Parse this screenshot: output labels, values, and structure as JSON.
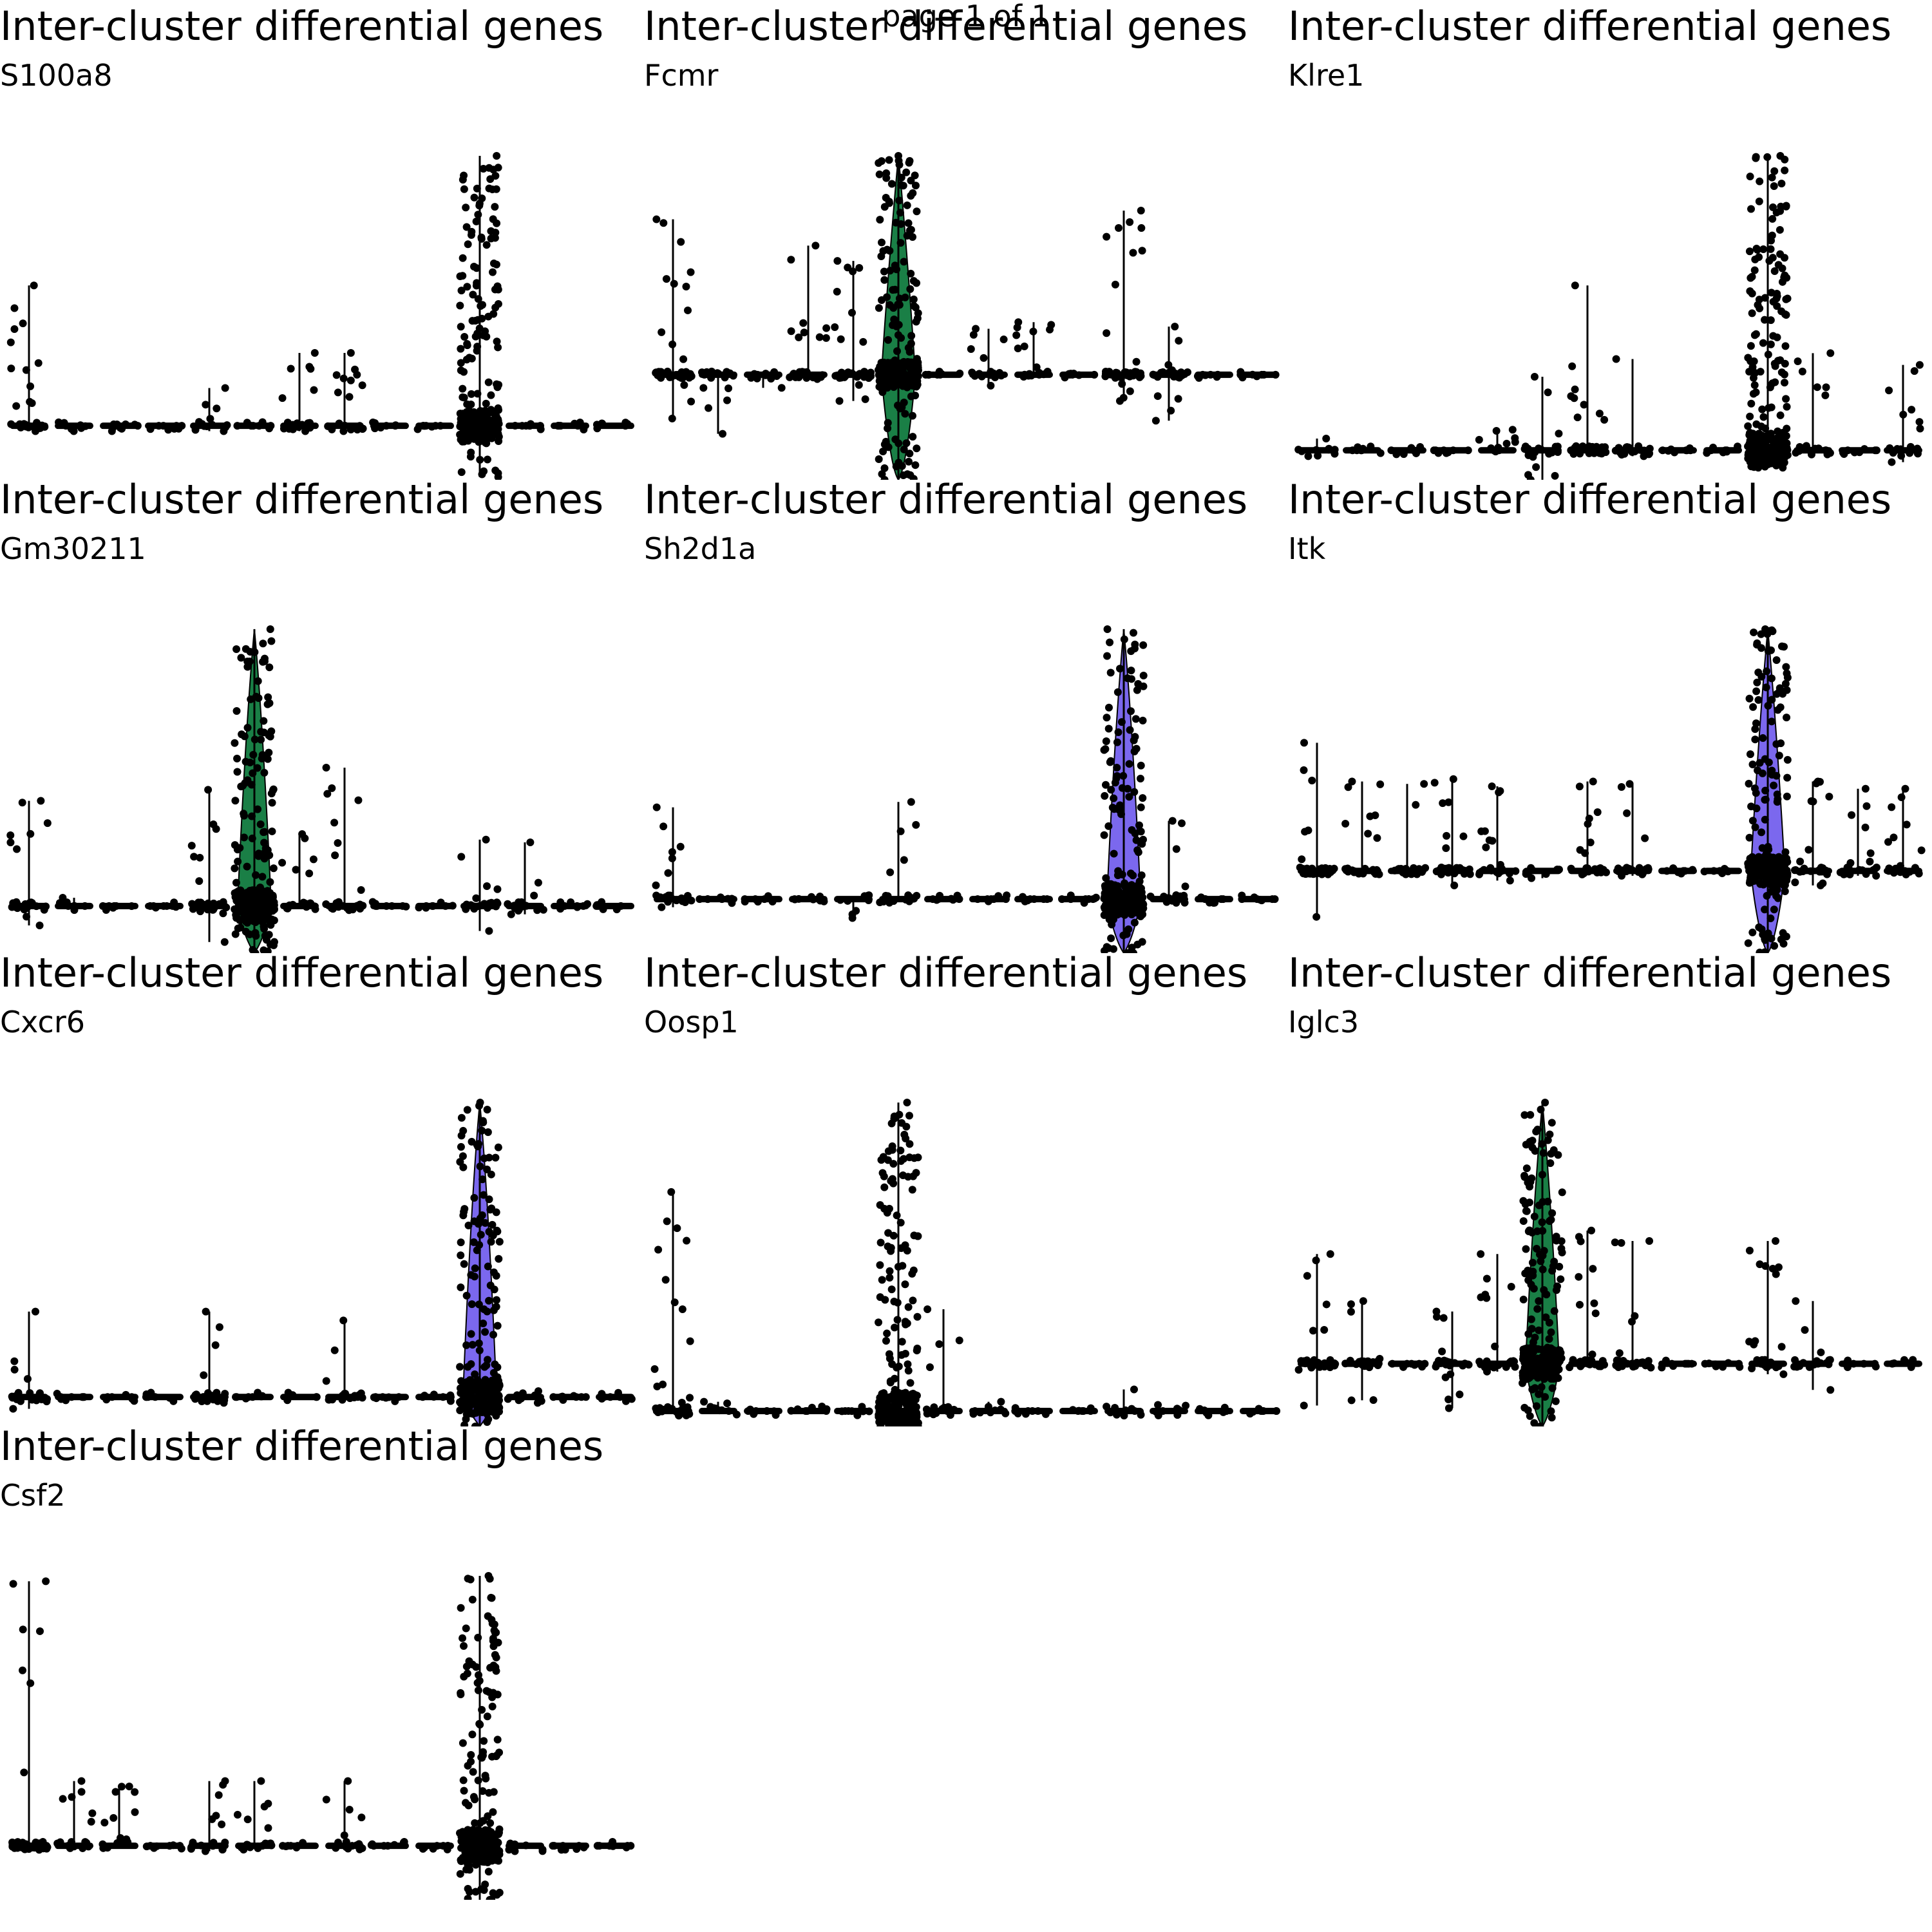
{
  "page_label": "page 1 of 1",
  "colors": {
    "points": "#000000",
    "violin_green": "#1a7f46",
    "violin_purple": "#7b68ee"
  },
  "chart_data": [
    {
      "type": "scatter",
      "title": "Inter-cluster differential genes",
      "subtitle": "S100a8",
      "n_groups": 14,
      "spike_group": 11,
      "spike_level": 1.0,
      "fill": "none",
      "baseline": 0.0,
      "ylim": [
        -0.2,
        1.0
      ],
      "groups": [
        {
          "index": 1,
          "max": 0.52,
          "min": -0.02
        },
        {
          "index": 2,
          "max": 0.0,
          "min": -0.02
        },
        {
          "index": 3,
          "max": 0.0,
          "min": -0.02
        },
        {
          "index": 4,
          "max": 0.0,
          "min": 0.0
        },
        {
          "index": 5,
          "max": 0.14,
          "min": -0.02
        },
        {
          "index": 6,
          "max": 0.0,
          "min": 0.0
        },
        {
          "index": 7,
          "max": 0.27,
          "min": -0.02
        },
        {
          "index": 8,
          "max": 0.27,
          "min": -0.02
        },
        {
          "index": 9,
          "max": 0.0,
          "min": 0.0
        },
        {
          "index": 10,
          "max": 0.0,
          "min": 0.0
        },
        {
          "index": 11,
          "max": 1.0,
          "min": -0.19
        },
        {
          "index": 12,
          "max": 0.0,
          "min": 0.0
        },
        {
          "index": 13,
          "max": 0.0,
          "min": 0.0
        },
        {
          "index": 14,
          "max": 0.0,
          "min": 0.0
        }
      ]
    },
    {
      "type": "scatter",
      "title": "Inter-cluster differential genes",
      "subtitle": "Fcmr",
      "n_groups": 14,
      "spike_group": 6,
      "spike_level": 1.0,
      "fill": "green",
      "baseline": 0.0,
      "ylim": [
        -0.48,
        1.0
      ],
      "groups": [
        {
          "index": 1,
          "max": 0.71,
          "min": -0.2
        },
        {
          "index": 2,
          "max": 0.0,
          "min": -0.27
        },
        {
          "index": 3,
          "max": 0.0,
          "min": -0.06
        },
        {
          "index": 4,
          "max": 0.59,
          "min": -0.02
        },
        {
          "index": 5,
          "max": 0.52,
          "min": -0.12
        },
        {
          "index": 6,
          "max": 1.0,
          "min": -0.48
        },
        {
          "index": 7,
          "max": 0.0,
          "min": 0.0
        },
        {
          "index": 8,
          "max": 0.21,
          "min": -0.05
        },
        {
          "index": 9,
          "max": 0.24,
          "min": 0.0
        },
        {
          "index": 10,
          "max": 0.0,
          "min": 0.0
        },
        {
          "index": 11,
          "max": 0.75,
          "min": -0.12
        },
        {
          "index": 12,
          "max": 0.22,
          "min": -0.21
        },
        {
          "index": 13,
          "max": 0.0,
          "min": 0.0
        },
        {
          "index": 14,
          "max": 0.0,
          "min": 0.0
        }
      ]
    },
    {
      "type": "scatter",
      "title": "Inter-cluster differential genes",
      "subtitle": "Klre1",
      "n_groups": 14,
      "spike_group": 11,
      "spike_level": 1.0,
      "fill": "none",
      "baseline": 0.0,
      "ylim": [
        -0.1,
        1.0
      ],
      "groups": [
        {
          "index": 1,
          "max": 0.04,
          "min": -0.02
        },
        {
          "index": 2,
          "max": 0.0,
          "min": 0.0
        },
        {
          "index": 3,
          "max": 0.0,
          "min": 0.0
        },
        {
          "index": 4,
          "max": 0.0,
          "min": 0.0
        },
        {
          "index": 5,
          "max": 0.07,
          "min": 0.0
        },
        {
          "index": 6,
          "max": 0.25,
          "min": -0.1
        },
        {
          "index": 7,
          "max": 0.56,
          "min": 0.0
        },
        {
          "index": 8,
          "max": 0.31,
          "min": -0.02
        },
        {
          "index": 9,
          "max": 0.0,
          "min": 0.0
        },
        {
          "index": 10,
          "max": 0.0,
          "min": 0.0
        },
        {
          "index": 11,
          "max": 1.0,
          "min": -0.02
        },
        {
          "index": 12,
          "max": 0.33,
          "min": 0.0
        },
        {
          "index": 13,
          "max": 0.0,
          "min": 0.0
        },
        {
          "index": 14,
          "max": 0.29,
          "min": -0.04
        }
      ]
    },
    {
      "type": "scatter",
      "title": "Inter-cluster differential genes",
      "subtitle": "Gm30211",
      "n_groups": 14,
      "spike_group": 6,
      "spike_level": 1.0,
      "fill": "green",
      "baseline": 0.0,
      "ylim": [
        -0.17,
        1.0
      ],
      "groups": [
        {
          "index": 1,
          "max": 0.38,
          "min": -0.07
        },
        {
          "index": 2,
          "max": 0.03,
          "min": 0.0
        },
        {
          "index": 3,
          "max": 0.0,
          "min": 0.0
        },
        {
          "index": 4,
          "max": 0.0,
          "min": 0.0
        },
        {
          "index": 5,
          "max": 0.42,
          "min": -0.13
        },
        {
          "index": 6,
          "max": 1.0,
          "min": -0.17
        },
        {
          "index": 7,
          "max": 0.26,
          "min": 0.0
        },
        {
          "index": 8,
          "max": 0.5,
          "min": 0.0
        },
        {
          "index": 9,
          "max": 0.0,
          "min": 0.0
        },
        {
          "index": 10,
          "max": 0.0,
          "min": 0.0
        },
        {
          "index": 11,
          "max": 0.24,
          "min": -0.09
        },
        {
          "index": 12,
          "max": 0.23,
          "min": -0.03
        },
        {
          "index": 13,
          "max": 0.0,
          "min": 0.0
        },
        {
          "index": 14,
          "max": 0.0,
          "min": 0.0
        }
      ]
    },
    {
      "type": "scatter",
      "title": "Inter-cluster differential genes",
      "subtitle": "Sh2d1a",
      "n_groups": 14,
      "spike_group": 11,
      "spike_level": 1.0,
      "fill": "purple",
      "baseline": 0.0,
      "ylim": [
        -0.2,
        1.0
      ],
      "groups": [
        {
          "index": 1,
          "max": 0.34,
          "min": -0.03
        },
        {
          "index": 2,
          "max": 0.0,
          "min": 0.0
        },
        {
          "index": 3,
          "max": 0.0,
          "min": 0.0
        },
        {
          "index": 4,
          "max": 0.01,
          "min": 0.0
        },
        {
          "index": 5,
          "max": 0.0,
          "min": -0.07
        },
        {
          "index": 6,
          "max": 0.36,
          "min": 0.0
        },
        {
          "index": 7,
          "max": 0.0,
          "min": 0.0
        },
        {
          "index": 8,
          "max": 0.0,
          "min": 0.0
        },
        {
          "index": 9,
          "max": 0.0,
          "min": 0.0
        },
        {
          "index": 10,
          "max": 0.0,
          "min": 0.0
        },
        {
          "index": 11,
          "max": 1.0,
          "min": -0.2
        },
        {
          "index": 12,
          "max": 0.29,
          "min": 0.0
        },
        {
          "index": 13,
          "max": 0.0,
          "min": 0.0
        },
        {
          "index": 14,
          "max": 0.0,
          "min": 0.0
        }
      ]
    },
    {
      "type": "scatter",
      "title": "Inter-cluster differential genes",
      "subtitle": "Itk",
      "n_groups": 14,
      "spike_group": 11,
      "spike_level": 1.0,
      "fill": "purple",
      "baseline": 0.0,
      "ylim": [
        -0.34,
        1.0
      ],
      "groups": [
        {
          "index": 1,
          "max": 0.53,
          "min": -0.19
        },
        {
          "index": 2,
          "max": 0.37,
          "min": 0.0
        },
        {
          "index": 3,
          "max": 0.36,
          "min": 0.0
        },
        {
          "index": 4,
          "max": 0.38,
          "min": -0.06
        },
        {
          "index": 5,
          "max": 0.35,
          "min": -0.04
        },
        {
          "index": 6,
          "max": 0.0,
          "min": -0.03
        },
        {
          "index": 7,
          "max": 0.37,
          "min": 0.0
        },
        {
          "index": 8,
          "max": 0.36,
          "min": -0.02
        },
        {
          "index": 9,
          "max": 0.0,
          "min": 0.0
        },
        {
          "index": 10,
          "max": 0.0,
          "min": 0.0
        },
        {
          "index": 11,
          "max": 1.0,
          "min": -0.34
        },
        {
          "index": 12,
          "max": 0.37,
          "min": -0.06
        },
        {
          "index": 13,
          "max": 0.34,
          "min": -0.02
        },
        {
          "index": 14,
          "max": 0.34,
          "min": 0.0
        }
      ]
    },
    {
      "type": "scatter",
      "title": "Inter-cluster differential genes",
      "subtitle": "Cxcr6",
      "n_groups": 14,
      "spike_group": 11,
      "spike_level": 1.0,
      "fill": "purple",
      "baseline": 0.0,
      "ylim": [
        -0.1,
        1.0
      ],
      "groups": [
        {
          "index": 1,
          "max": 0.29,
          "min": -0.04
        },
        {
          "index": 2,
          "max": 0.0,
          "min": 0.0
        },
        {
          "index": 3,
          "max": 0.0,
          "min": 0.0
        },
        {
          "index": 4,
          "max": 0.0,
          "min": 0.0
        },
        {
          "index": 5,
          "max": 0.29,
          "min": -0.02
        },
        {
          "index": 6,
          "max": 0.0,
          "min": 0.0
        },
        {
          "index": 7,
          "max": 0.0,
          "min": 0.0
        },
        {
          "index": 8,
          "max": 0.26,
          "min": 0.0
        },
        {
          "index": 9,
          "max": 0.0,
          "min": 0.0
        },
        {
          "index": 10,
          "max": 0.0,
          "min": 0.0
        },
        {
          "index": 11,
          "max": 1.0,
          "min": -0.1
        },
        {
          "index": 12,
          "max": 0.02,
          "min": -0.02
        },
        {
          "index": 13,
          "max": 0.0,
          "min": 0.0
        },
        {
          "index": 14,
          "max": 0.0,
          "min": 0.0
        }
      ]
    },
    {
      "type": "scatter",
      "title": "Inter-cluster differential genes",
      "subtitle": "Oosp1",
      "n_groups": 14,
      "spike_group": 6,
      "spike_level": 1.0,
      "fill": "none",
      "baseline": 0.0,
      "ylim": [
        -0.05,
        1.0
      ],
      "groups": [
        {
          "index": 1,
          "max": 0.71,
          "min": 0.0
        },
        {
          "index": 2,
          "max": 0.03,
          "min": 0.0
        },
        {
          "index": 3,
          "max": 0.0,
          "min": 0.0
        },
        {
          "index": 4,
          "max": 0.0,
          "min": 0.0
        },
        {
          "index": 5,
          "max": 0.0,
          "min": 0.0
        },
        {
          "index": 6,
          "max": 1.0,
          "min": -0.05
        },
        {
          "index": 7,
          "max": 0.33,
          "min": 0.0
        },
        {
          "index": 8,
          "max": 0.03,
          "min": 0.0
        },
        {
          "index": 9,
          "max": 0.0,
          "min": 0.0
        },
        {
          "index": 10,
          "max": 0.0,
          "min": 0.0
        },
        {
          "index": 11,
          "max": 0.07,
          "min": 0.0
        },
        {
          "index": 12,
          "max": 0.02,
          "min": 0.0
        },
        {
          "index": 13,
          "max": 0.0,
          "min": 0.0
        },
        {
          "index": 14,
          "max": 0.0,
          "min": 0.0
        }
      ]
    },
    {
      "type": "scatter",
      "title": "Inter-cluster differential genes",
      "subtitle": "Iglc3",
      "n_groups": 14,
      "spike_group": 6,
      "spike_level": 1.0,
      "fill": "green",
      "baseline": 0.0,
      "ylim": [
        -0.24,
        1.0
      ],
      "groups": [
        {
          "index": 1,
          "max": 0.42,
          "min": -0.16
        },
        {
          "index": 2,
          "max": 0.24,
          "min": -0.14
        },
        {
          "index": 3,
          "max": 0.0,
          "min": 0.0
        },
        {
          "index": 4,
          "max": 0.2,
          "min": -0.17
        },
        {
          "index": 5,
          "max": 0.42,
          "min": -0.03
        },
        {
          "index": 6,
          "max": 1.0,
          "min": -0.24
        },
        {
          "index": 7,
          "max": 0.51,
          "min": 0.0
        },
        {
          "index": 8,
          "max": 0.47,
          "min": 0.0
        },
        {
          "index": 9,
          "max": 0.0,
          "min": 0.0
        },
        {
          "index": 10,
          "max": 0.0,
          "min": 0.0
        },
        {
          "index": 11,
          "max": 0.47,
          "min": -0.04
        },
        {
          "index": 12,
          "max": 0.24,
          "min": -0.1
        },
        {
          "index": 13,
          "max": 0.0,
          "min": 0.0
        },
        {
          "index": 14,
          "max": 0.0,
          "min": 0.0
        }
      ]
    },
    {
      "type": "scatter",
      "title": "Inter-cluster differential genes",
      "subtitle": "Csf2",
      "n_groups": 14,
      "spike_group": 11,
      "spike_level": 1.0,
      "fill": "none",
      "baseline": 0.0,
      "ylim": [
        -0.2,
        1.0
      ],
      "groups": [
        {
          "index": 1,
          "max": 0.98,
          "min": 0.0
        },
        {
          "index": 2,
          "max": 0.24,
          "min": 0.0
        },
        {
          "index": 3,
          "max": 0.22,
          "min": 0.0
        },
        {
          "index": 4,
          "max": 0.0,
          "min": 0.0
        },
        {
          "index": 5,
          "max": 0.24,
          "min": -0.02
        },
        {
          "index": 6,
          "max": 0.24,
          "min": 0.0
        },
        {
          "index": 7,
          "max": 0.0,
          "min": 0.0
        },
        {
          "index": 8,
          "max": 0.24,
          "min": 0.0
        },
        {
          "index": 9,
          "max": 0.0,
          "min": 0.0
        },
        {
          "index": 10,
          "max": 0.0,
          "min": 0.0
        },
        {
          "index": 11,
          "max": 1.0,
          "min": -0.2
        },
        {
          "index": 12,
          "max": 0.0,
          "min": -0.02
        },
        {
          "index": 13,
          "max": 0.0,
          "min": 0.0
        },
        {
          "index": 14,
          "max": 0.0,
          "min": 0.0
        }
      ]
    }
  ]
}
